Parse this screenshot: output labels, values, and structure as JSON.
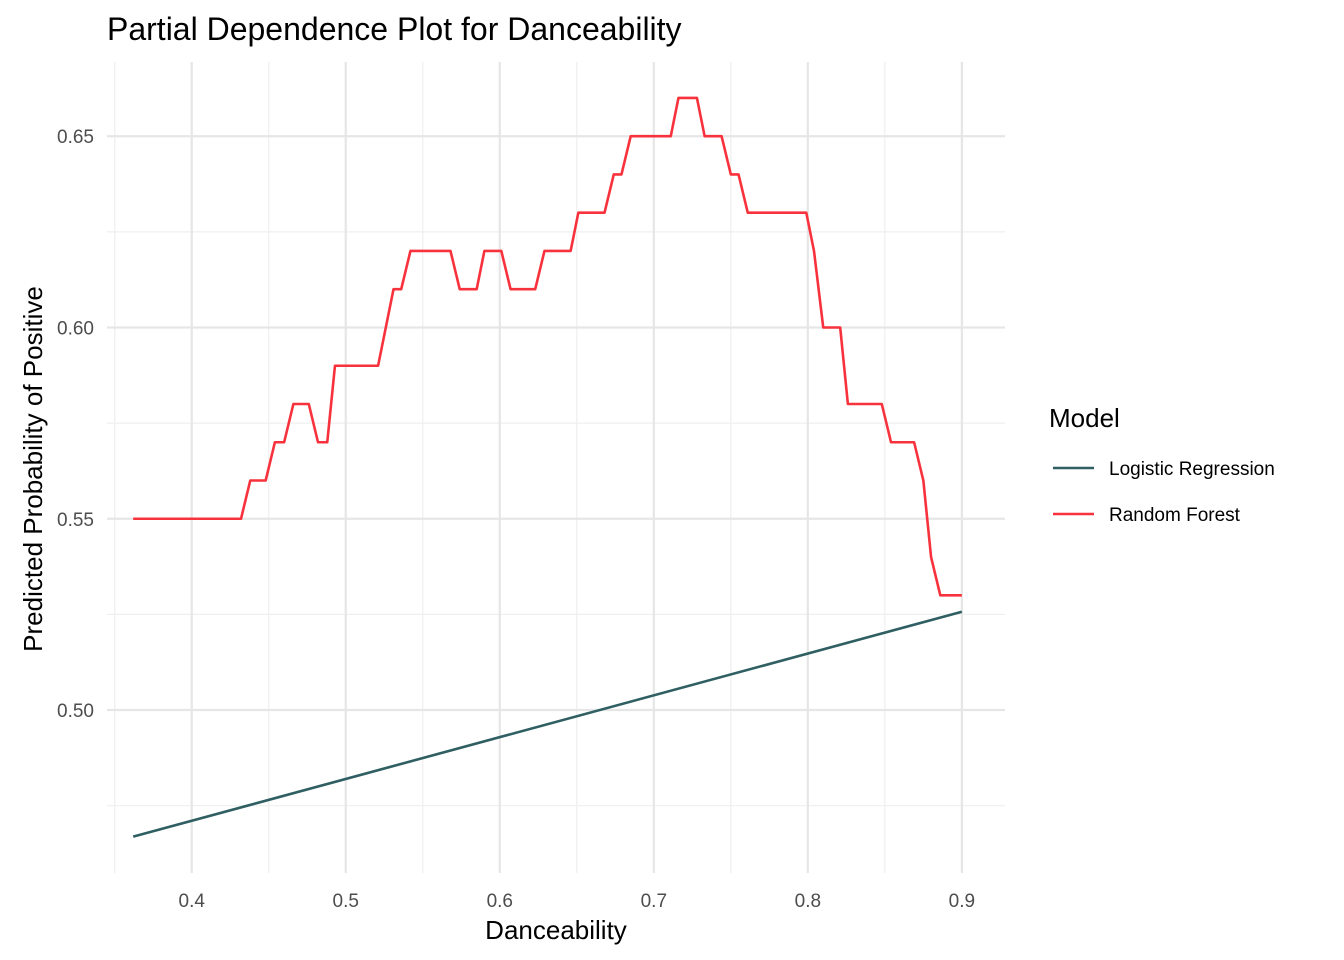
{
  "chart_data": {
    "type": "line",
    "title": "Partial Dependence Plot for Danceability",
    "xlabel": "Danceability",
    "ylabel": "Predicted Probability of Positive",
    "xlim": [
      0.345,
      0.928
    ],
    "ylim": [
      0.4574,
      0.6694
    ],
    "x_ticks": [
      0.4,
      0.5,
      0.6,
      0.7,
      0.8,
      0.9
    ],
    "x_tick_labels": [
      "0.4",
      "0.5",
      "0.6",
      "0.7",
      "0.8",
      "0.9"
    ],
    "y_ticks": [
      0.5,
      0.55,
      0.6,
      0.65
    ],
    "y_tick_labels": [
      "0.50",
      "0.55",
      "0.60",
      "0.65"
    ],
    "grid": true,
    "legend": {
      "title": "Model",
      "position": "right",
      "entries": [
        {
          "label": "Logistic Regression",
          "color": "#2f5f62"
        },
        {
          "label": "Random Forest",
          "color": "#f8323c"
        }
      ]
    },
    "series": [
      {
        "name": "Logistic Regression",
        "color": "#2f5f62",
        "x": [
          0.362,
          0.9
        ],
        "y": [
          0.4669,
          0.5257
        ]
      },
      {
        "name": "Random Forest",
        "color": "#f8323c",
        "x": [
          0.362,
          0.432,
          0.438,
          0.448,
          0.454,
          0.46,
          0.466,
          0.476,
          0.482,
          0.488,
          0.493,
          0.521,
          0.531,
          0.536,
          0.542,
          0.568,
          0.574,
          0.585,
          0.59,
          0.601,
          0.607,
          0.623,
          0.629,
          0.646,
          0.651,
          0.668,
          0.674,
          0.679,
          0.685,
          0.711,
          0.716,
          0.728,
          0.733,
          0.744,
          0.75,
          0.755,
          0.761,
          0.799,
          0.804,
          0.81,
          0.821,
          0.826,
          0.848,
          0.854,
          0.869,
          0.875,
          0.88,
          0.886,
          0.9
        ],
        "y": [
          0.55,
          0.55,
          0.56,
          0.56,
          0.57,
          0.57,
          0.58,
          0.58,
          0.57,
          0.57,
          0.59,
          0.59,
          0.61,
          0.61,
          0.62,
          0.62,
          0.61,
          0.61,
          0.62,
          0.62,
          0.61,
          0.61,
          0.62,
          0.62,
          0.63,
          0.63,
          0.64,
          0.64,
          0.65,
          0.65,
          0.66,
          0.66,
          0.65,
          0.65,
          0.64,
          0.64,
          0.63,
          0.63,
          0.62,
          0.6,
          0.6,
          0.58,
          0.58,
          0.57,
          0.57,
          0.56,
          0.54,
          0.53,
          0.53
        ]
      }
    ]
  }
}
